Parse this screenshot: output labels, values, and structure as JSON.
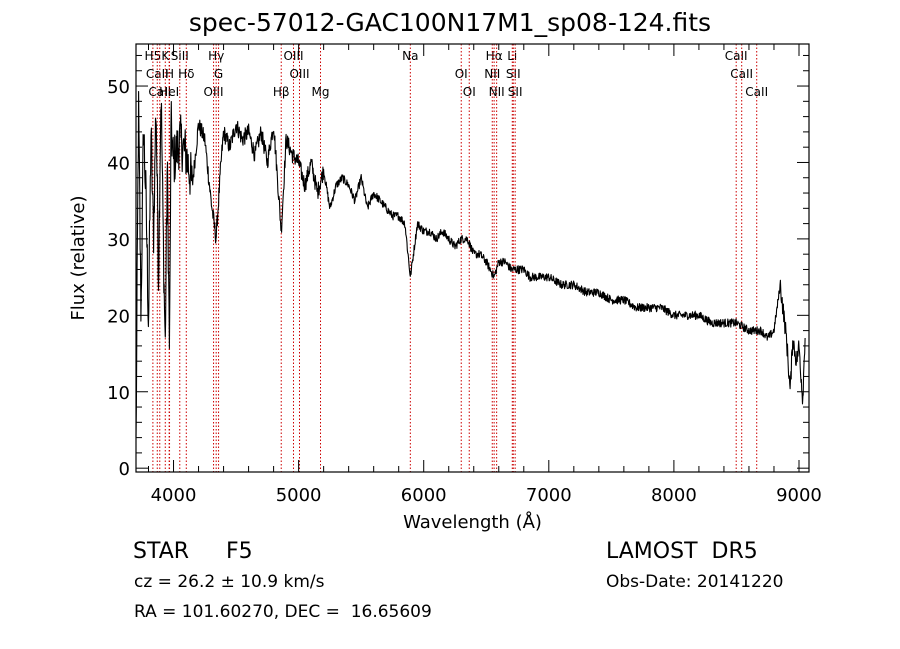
{
  "title": "spec-57012-GAC100N17M1_sp08-124.fits",
  "info": {
    "object_class": "STAR",
    "subclass": "F5",
    "survey": "LAMOST  DR5",
    "redshift": "cz = 26.2 ± 10.9 km/s",
    "obs_date": "Obs-Date: 20141220",
    "coords": "RA = 101.60270, DEC =  16.65609"
  },
  "colors": {
    "line": "#000000",
    "marker": "#cc0000",
    "background": "#ffffff"
  },
  "chart_data": {
    "type": "line",
    "title": "spec-57012-GAC100N17M1_sp08-124.fits",
    "xlabel": "Wavelength (Å)",
    "ylabel": "Flux (relative)",
    "xlim": [
      3700,
      9080
    ],
    "ylim": [
      -0.5,
      55.5
    ],
    "x_ticks": [
      4000,
      5000,
      6000,
      7000,
      8000,
      9000
    ],
    "y_ticks": [
      0,
      10,
      20,
      30,
      40,
      50
    ],
    "x_tick_labels": [
      "4000",
      "5000",
      "6000",
      "7000",
      "8000",
      "9000"
    ],
    "y_tick_labels": [
      "0",
      "10",
      "20",
      "30",
      "40",
      "50"
    ],
    "grid": false,
    "series": [
      {
        "x": [
          3700,
          3720,
          3740,
          3760,
          3780,
          3800,
          3820,
          3840,
          3860,
          3880,
          3900,
          3920,
          3934,
          3950,
          3968,
          3980,
          4000,
          4050,
          4102,
          4150,
          4200,
          4250,
          4300,
          4340,
          4380,
          4400,
          4450,
          4500,
          4550,
          4600,
          4650,
          4700,
          4750,
          4800,
          4861,
          4900,
          4950,
          5000,
          5050,
          5100,
          5150,
          5200,
          5250,
          5300,
          5350,
          5400,
          5450,
          5500,
          5550,
          5600,
          5650,
          5700,
          5750,
          5800,
          5850,
          5893,
          5950,
          6000,
          6050,
          6100,
          6150,
          6200,
          6250,
          6300,
          6350,
          6400,
          6450,
          6500,
          6563,
          6600,
          6650,
          6700,
          6750,
          6800,
          6850,
          6900,
          6950,
          7000,
          7100,
          7200,
          7300,
          7400,
          7500,
          7600,
          7700,
          7800,
          7900,
          8000,
          8100,
          8200,
          8300,
          8400,
          8500,
          8600,
          8700,
          8750,
          8800,
          8850,
          8900,
          8930,
          8950,
          8980,
          9000,
          9030,
          9050
        ],
        "y": [
          3,
          48,
          20,
          45,
          35,
          19,
          44,
          30,
          48,
          25,
          50,
          28,
          16,
          40,
          15,
          45,
          40,
          43,
          41,
          37,
          45,
          43,
          35,
          30,
          40,
          44,
          42,
          45,
          43,
          44,
          41,
          44,
          40,
          45,
          31,
          43,
          41,
          40,
          37,
          40,
          36,
          39,
          34,
          37,
          38,
          37,
          35,
          38,
          34,
          36,
          35,
          34,
          33,
          33,
          32,
          25,
          32,
          31,
          31,
          30,
          31,
          30,
          29,
          30,
          30,
          28,
          28,
          27,
          25,
          27,
          27,
          26,
          26,
          26,
          25,
          25,
          25,
          25,
          24,
          24,
          23,
          23,
          22,
          22,
          21,
          21,
          21,
          20,
          20,
          20,
          19,
          19,
          19,
          18,
          18,
          17,
          18,
          24,
          17,
          10,
          17,
          14,
          16,
          9,
          18
        ]
      }
    ],
    "line_markers": [
      {
        "label": "H5",
        "x": 3835
      },
      {
        "label": "CaII",
        "x": 3870
      },
      {
        "label": "CaII",
        "x": 3890
      },
      {
        "label": "K",
        "x": 3934
      },
      {
        "label": "H",
        "x": 3968
      },
      {
        "label": "HeI",
        "x": 3965
      },
      {
        "label": "SiII",
        "x": 4050
      },
      {
        "label": "Hδ",
        "x": 4102
      },
      {
        "label": "OIII",
        "x": 4320
      },
      {
        "label": "Hγ",
        "x": 4341
      },
      {
        "label": "G",
        "x": 4360
      },
      {
        "label": "Hβ",
        "x": 4861
      },
      {
        "label": "OIII",
        "x": 4959
      },
      {
        "label": "OIII",
        "x": 5007
      },
      {
        "label": "Mg",
        "x": 5175
      },
      {
        "label": "Na",
        "x": 5893
      },
      {
        "label": "OI",
        "x": 6300
      },
      {
        "label": "OI",
        "x": 6364
      },
      {
        "label": "Hα",
        "x": 6563
      },
      {
        "label": "NII",
        "x": 6548
      },
      {
        "label": "NII",
        "x": 6583
      },
      {
        "label": "Li",
        "x": 6708
      },
      {
        "label": "SII",
        "x": 6716
      },
      {
        "label": "SII",
        "x": 6731
      },
      {
        "label": "CaII",
        "x": 8498
      },
      {
        "label": "CaII",
        "x": 8542
      },
      {
        "label": "CaII",
        "x": 8662
      }
    ]
  }
}
